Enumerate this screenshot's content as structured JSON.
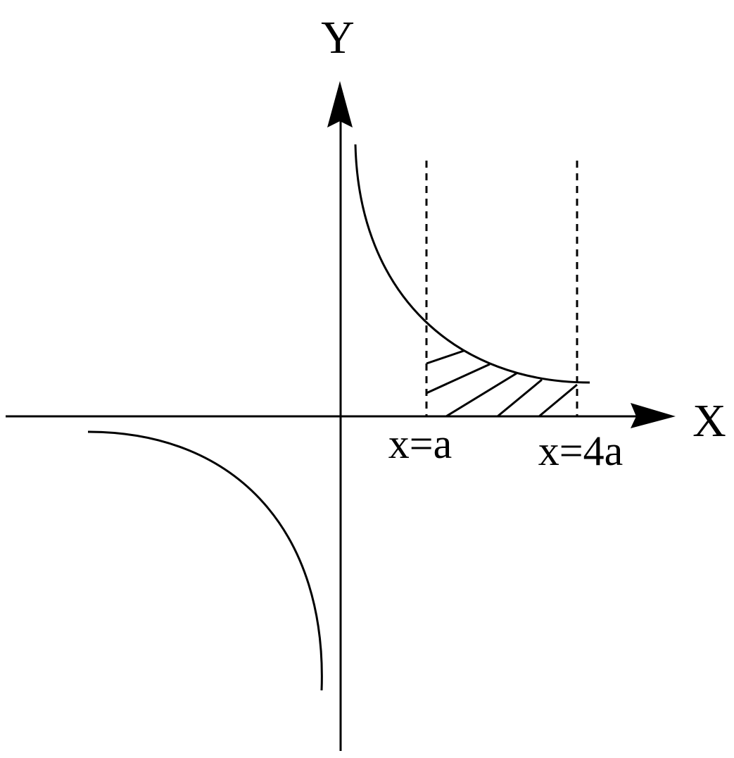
{
  "labels": {
    "y_axis": "Y",
    "x_axis": "X",
    "line_a": "x=a",
    "line_4a": "x=4a"
  },
  "colors": {
    "stroke": "#000000",
    "background": "#ffffff"
  }
}
